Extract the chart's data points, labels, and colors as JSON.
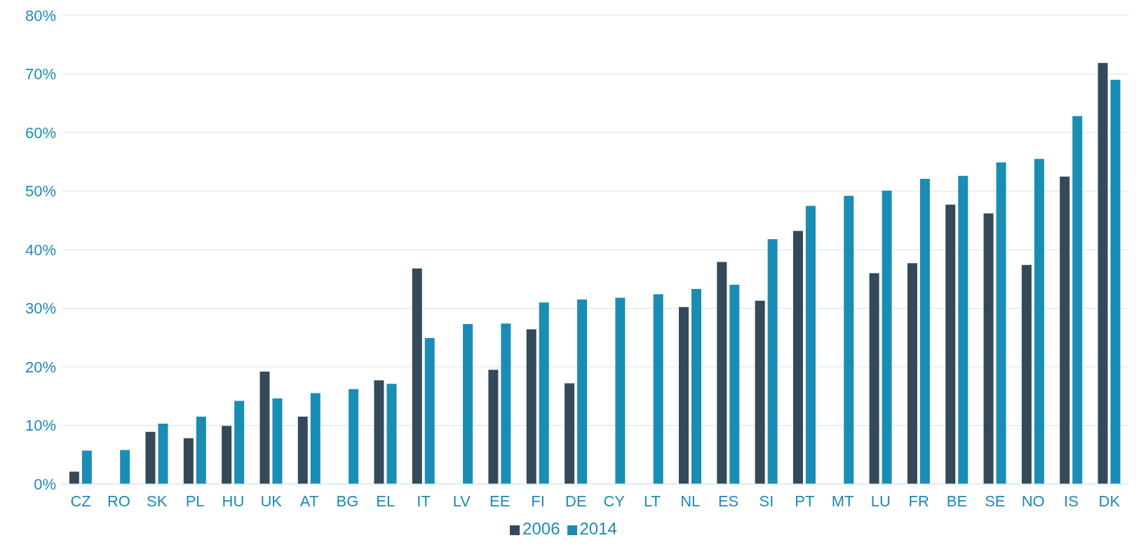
{
  "chart_data": {
    "type": "bar",
    "categories": [
      "CZ",
      "RO",
      "SK",
      "PL",
      "HU",
      "UK",
      "AT",
      "BG",
      "EL",
      "IT",
      "LV",
      "EE",
      "FI",
      "DE",
      "CY",
      "LT",
      "NL",
      "ES",
      "SI",
      "PT",
      "MT",
      "LU",
      "FR",
      "BE",
      "SE",
      "NO",
      "IS",
      "DK"
    ],
    "series": [
      {
        "name": "2006",
        "color": "#34495a",
        "values": [
          2.1,
          null,
          8.9,
          7.8,
          9.9,
          19.2,
          11.5,
          null,
          17.7,
          36.8,
          null,
          19.5,
          26.4,
          17.2,
          null,
          null,
          30.2,
          37.9,
          31.3,
          43.2,
          null,
          36.0,
          37.7,
          47.7,
          46.2,
          37.4,
          52.5,
          71.9
        ]
      },
      {
        "name": "2014",
        "color": "#1a8db5",
        "values": [
          5.7,
          5.8,
          10.3,
          11.5,
          14.2,
          14.6,
          15.5,
          16.2,
          17.1,
          24.9,
          27.3,
          27.4,
          31.0,
          31.5,
          31.8,
          32.4,
          33.3,
          34.0,
          41.8,
          47.5,
          49.2,
          50.1,
          52.1,
          52.6,
          54.9,
          55.5,
          62.8,
          69.0
        ]
      }
    ],
    "ylim": [
      0,
      80
    ],
    "yticks": [
      {
        "value": 0,
        "label": "0%"
      },
      {
        "value": 10,
        "label": "10%"
      },
      {
        "value": 20,
        "label": "20%"
      },
      {
        "value": 30,
        "label": "30%"
      },
      {
        "value": 40,
        "label": "40%"
      },
      {
        "value": 50,
        "label": "50%"
      },
      {
        "value": 60,
        "label": "60%"
      },
      {
        "value": 70,
        "label": "70%"
      },
      {
        "value": 80,
        "label": "80%"
      }
    ],
    "grid": "y",
    "legend": "bottom"
  }
}
